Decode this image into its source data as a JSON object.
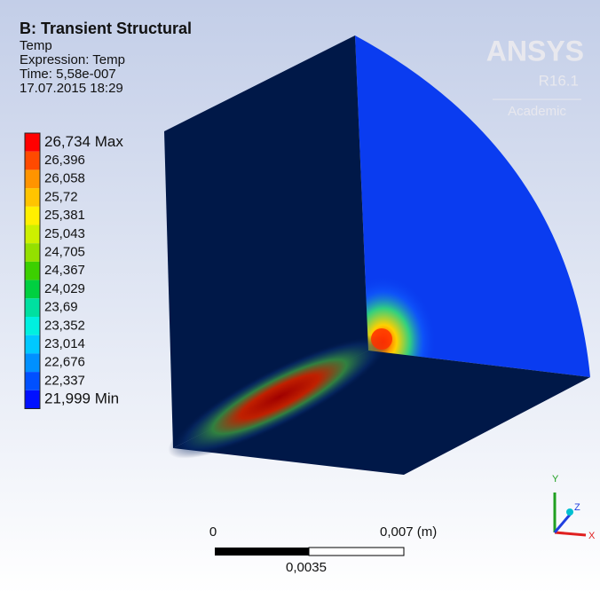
{
  "header": {
    "title": "B: Transient Structural",
    "lines": [
      "Temp",
      "Expression: Temp",
      "Time: 5,58e-007",
      "17.07.2015 18:29"
    ]
  },
  "logo": {
    "brand": "ANSYS",
    "version": "R16.1",
    "edition": "Academic"
  },
  "legend": {
    "items": [
      {
        "label": "26,734 Max",
        "color": "#ff0000"
      },
      {
        "label": "26,396",
        "color": "#ff4a00"
      },
      {
        "label": "26,058",
        "color": "#ff9400"
      },
      {
        "label": "25,72",
        "color": "#ffc400"
      },
      {
        "label": "25,381",
        "color": "#fff000"
      },
      {
        "label": "25,043",
        "color": "#cdf000"
      },
      {
        "label": "24,705",
        "color": "#94e000"
      },
      {
        "label": "24,367",
        "color": "#3cd000"
      },
      {
        "label": "24,029",
        "color": "#00d040"
      },
      {
        "label": "23,69",
        "color": "#00e0a0"
      },
      {
        "label": "23,352",
        "color": "#00f0e0"
      },
      {
        "label": "23,014",
        "color": "#00c8ff"
      },
      {
        "label": "22,676",
        "color": "#0090ff"
      },
      {
        "label": "22,337",
        "color": "#0050ff"
      },
      {
        "label": "21,999 Min",
        "color": "#0010ff"
      }
    ]
  },
  "scale_bar": {
    "start": "0",
    "end": "0,007 (m)",
    "middle": "0,0035"
  },
  "triad": {
    "y": "Y",
    "z": "Z",
    "x": "X"
  }
}
